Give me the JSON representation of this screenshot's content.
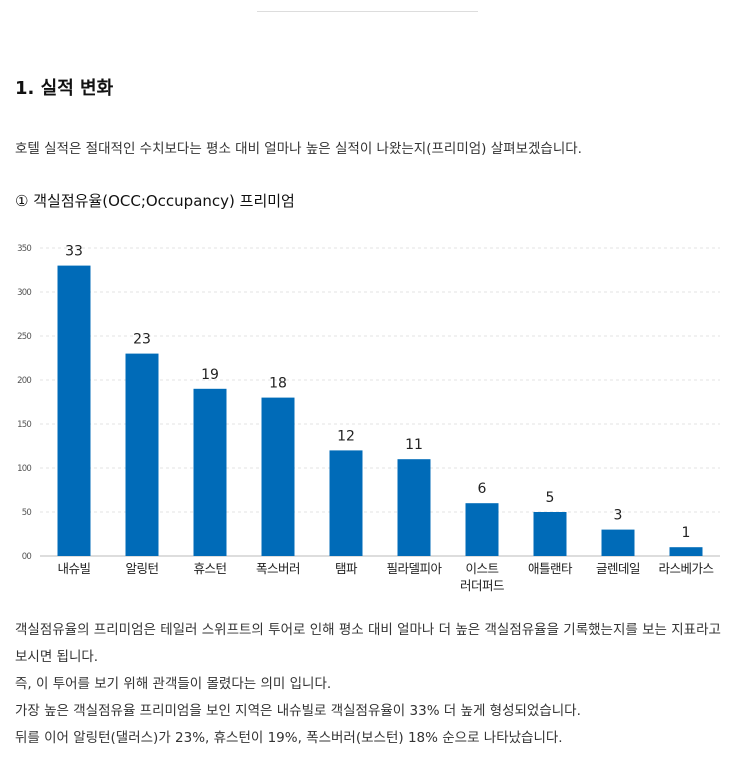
{
  "section_title": "1. 실적 변화",
  "intro": "호텔 실적은 절대적인 수치보다는 평소 대비 얼마나 높은 실적이 나왔는지(프리미엄) 살펴보겠습니다.",
  "subtitle": "① 객실점유율(OCC;Occupancy) 프리미엄",
  "chart_data": {
    "type": "bar",
    "title": "",
    "categories": [
      "내슈빌",
      "알링턴",
      "휴스턴",
      "폭스버러",
      "탬파",
      "필라델피아",
      "이스트\n러더퍼드",
      "애틀랜타",
      "글렌데일",
      "라스베가스"
    ],
    "values": [
      330,
      230,
      190,
      180,
      120,
      110,
      60,
      50,
      30,
      10
    ],
    "data_labels": [
      "33",
      "23",
      "19",
      "18",
      "12",
      "11",
      "6",
      "5",
      "3",
      "1"
    ],
    "yticks": [
      "00",
      "50",
      "100",
      "150",
      "200",
      "250",
      "300",
      "350"
    ],
    "ylim": [
      0,
      350
    ],
    "grid": true,
    "bar_color": "#006bb8"
  },
  "body": [
    "객실점유율의 프리미엄은 테일러 스위프트의 투어로 인해 평소 대비 얼마나 더 높은 객실점유율을 기록했는지를 보는 지표라고 보시면 됩니다.",
    "즉, 이 투어를 보기 위해 관객들이 몰렸다는 의미 입니다.",
    "가장 높은 객실점유율 프리미엄을 보인 지역은 내슈빌로 객실점유율이 33% 더 높게 형성되었습니다.",
    "뒤를 이어 알링턴(댈러스)가 23%, 휴스턴이 19%, 폭스버러(보스턴) 18% 순으로 나타났습니다."
  ]
}
